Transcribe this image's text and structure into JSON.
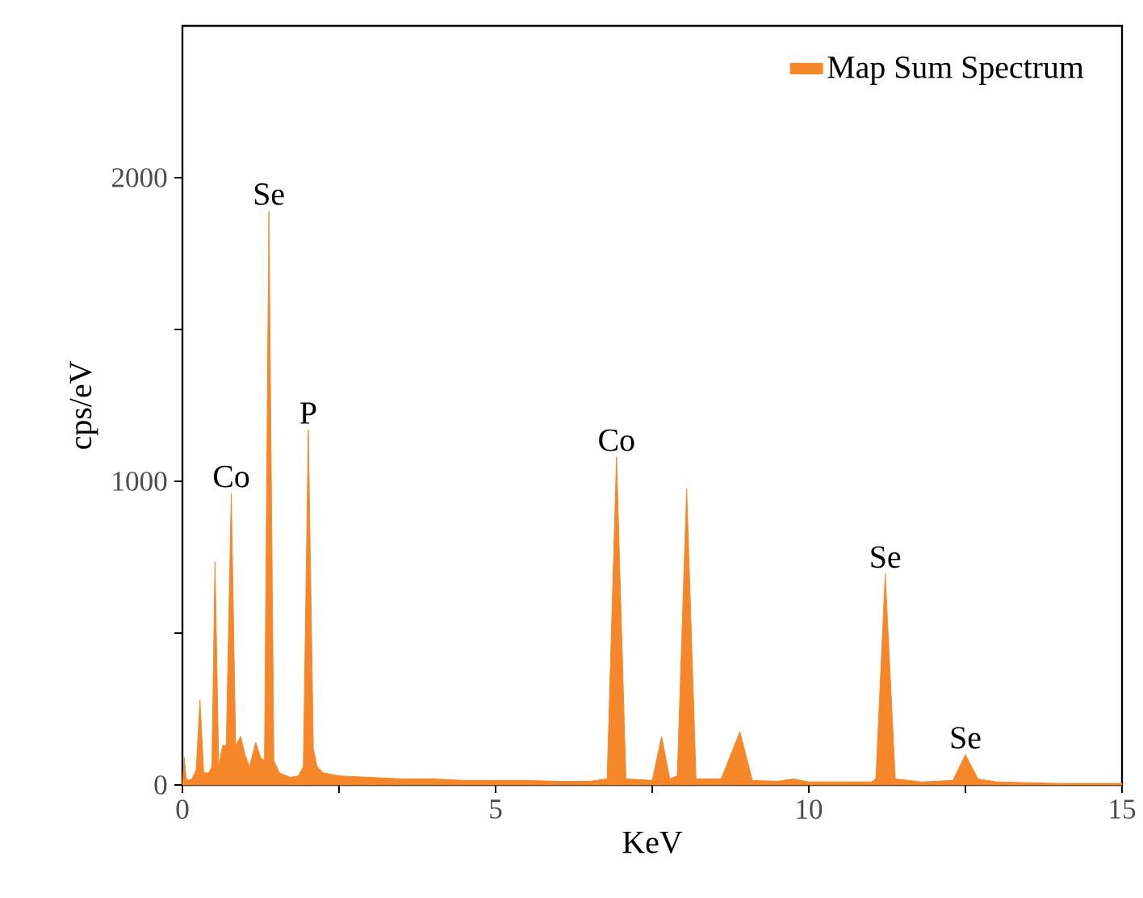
{
  "chart_data": {
    "type": "area",
    "xlabel": "KeV",
    "ylabel": "cps/eV",
    "xlim": [
      0,
      15
    ],
    "xticks": [
      0,
      {
        "value": 2.5,
        "label": null
      },
      5,
      {
        "value": 7.5,
        "label": null
      },
      10,
      {
        "value": 12.5,
        "label": null
      },
      15
    ],
    "ylim": [
      0,
      2500
    ],
    "yticks": [
      0,
      {
        "value": 500,
        "label": null
      },
      1000,
      {
        "value": 1500,
        "label": null
      },
      2000
    ],
    "legend": "top right",
    "series": [
      {
        "name": "Map Sum Spectrum",
        "color": "#f5872a",
        "x": [
          0,
          0.03,
          0.06,
          0.1,
          0.15,
          0.22,
          0.28,
          0.34,
          0.42,
          0.47,
          0.52,
          0.58,
          0.64,
          0.7,
          0.78,
          0.85,
          0.93,
          1.0,
          1.07,
          1.17,
          1.25,
          1.31,
          1.38,
          1.46,
          1.55,
          1.72,
          1.85,
          1.93,
          2.01,
          2.09,
          2.15,
          2.25,
          2.5,
          3,
          3.5,
          4,
          4.5,
          5,
          5.5,
          6,
          6.5,
          6.78,
          6.93,
          7.08,
          7.5,
          7.65,
          7.78,
          7.9,
          8.05,
          8.2,
          8.6,
          8.9,
          9.1,
          9.5,
          9.75,
          10,
          10.5,
          11,
          11.07,
          11.22,
          11.38,
          11.8,
          12.3,
          12.5,
          12.7,
          13,
          14,
          15
        ],
        "values": [
          0,
          90,
          20,
          15,
          20,
          50,
          280,
          40,
          40,
          60,
          735,
          60,
          130,
          130,
          960,
          130,
          160,
          100,
          60,
          140,
          90,
          80,
          1890,
          80,
          40,
          25,
          30,
          60,
          1170,
          120,
          60,
          40,
          30,
          25,
          20,
          20,
          15,
          15,
          15,
          12,
          12,
          20,
          1080,
          20,
          15,
          160,
          20,
          30,
          975,
          20,
          20,
          175,
          15,
          12,
          20,
          10,
          10,
          10,
          20,
          695,
          20,
          10,
          15,
          100,
          20,
          10,
          5,
          5
        ]
      }
    ],
    "annotations": [
      {
        "text": "Co",
        "x": 0.78,
        "y": 960
      },
      {
        "text": "Se",
        "x": 1.38,
        "y": 1890
      },
      {
        "text": "P",
        "x": 2.01,
        "y": 1170
      },
      {
        "text": "Co",
        "x": 6.93,
        "y": 1080
      },
      {
        "text": "Se",
        "x": 11.22,
        "y": 695
      },
      {
        "text": "Se",
        "x": 12.5,
        "y": 100
      }
    ]
  }
}
